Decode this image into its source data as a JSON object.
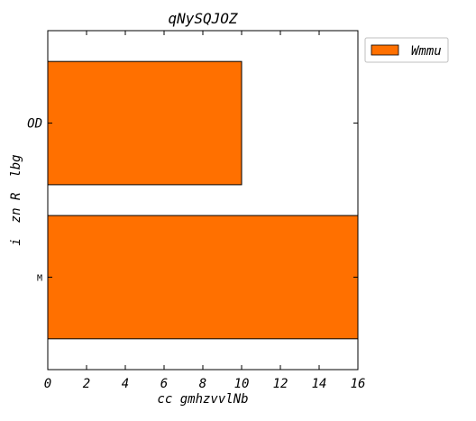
{
  "chart_data": {
    "type": "bar",
    "orientation": "horizontal",
    "title": "qNySQJOZ",
    "xlabel": "cc gmhzvvlNb",
    "ylabel": "i  zn R  lbg",
    "categories": [
      "OD",
      "M"
    ],
    "series": [
      {
        "name": "Wmmu",
        "values": [
          10,
          16
        ],
        "color": "#ff7000"
      }
    ],
    "xlim": [
      0,
      16
    ],
    "xticks": [
      0,
      2,
      4,
      6,
      8,
      10,
      12,
      14,
      16
    ],
    "grid": false,
    "legend_position": "outside-top-right"
  }
}
